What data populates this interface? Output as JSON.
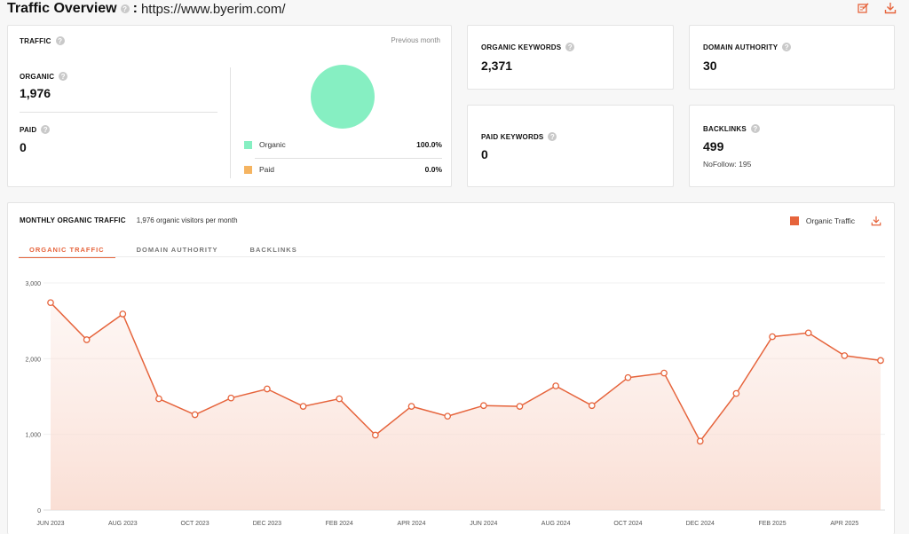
{
  "header": {
    "title": "Traffic Overview",
    "separator": ":",
    "url": "https://www.byerim.com/"
  },
  "traffic": {
    "label": "TRAFFIC",
    "period": "Previous month",
    "organic_label": "ORGANIC",
    "organic_value": "1,976",
    "paid_label": "PAID",
    "paid_value": "0",
    "legend": [
      {
        "name": "Organic",
        "pct": "100.0%",
        "color": "#86efc2"
      },
      {
        "name": "Paid",
        "pct": "0.0%",
        "color": "#f5b461"
      }
    ]
  },
  "organic_keywords": {
    "label": "ORGANIC KEYWORDS",
    "value": "2,371"
  },
  "paid_keywords": {
    "label": "PAID KEYWORDS",
    "value": "0"
  },
  "domain_authority": {
    "label": "DOMAIN AUTHORITY",
    "value": "30"
  },
  "backlinks": {
    "label": "BACKLINKS",
    "value": "499",
    "nofollow": "NoFollow: 195"
  },
  "monthly": {
    "title": "MONTHLY ORGANIC TRAFFIC",
    "subtitle": "1,976 organic visitors per month",
    "legend": "Organic Traffic",
    "tabs": [
      "ORGANIC TRAFFIC",
      "DOMAIN AUTHORITY",
      "BACKLINKS"
    ],
    "accent": "#e6643c"
  },
  "chart_data": {
    "type": "area",
    "x": [
      "JUN 2023",
      "JUL 2023",
      "AUG 2023",
      "SEP 2023",
      "OCT 2023",
      "NOV 2023",
      "DEC 2023",
      "JAN 2024",
      "FEB 2024",
      "MAR 2024",
      "APR 2024",
      "MAY 2024",
      "JUN 2024",
      "JUL 2024",
      "AUG 2024",
      "SEP 2024",
      "OCT 2024",
      "NOV 2024",
      "DEC 2024",
      "JAN 2025",
      "FEB 2025",
      "MAR 2025",
      "APR 2025",
      "MAY 2025"
    ],
    "xticks": [
      "JUN 2023",
      "AUG 2023",
      "OCT 2023",
      "DEC 2023",
      "FEB 2024",
      "APR 2024",
      "JUN 2024",
      "AUG 2024",
      "OCT 2024",
      "DEC 2024",
      "FEB 2025",
      "APR 2025"
    ],
    "series": [
      {
        "name": "Organic Traffic",
        "values": [
          2740,
          2250,
          2590,
          1470,
          1260,
          1480,
          1600,
          1370,
          1470,
          990,
          1370,
          1240,
          1380,
          1370,
          1640,
          1380,
          1750,
          1810,
          910,
          1540,
          2290,
          2340,
          2040,
          1976
        ]
      }
    ],
    "ylim": [
      0,
      3000
    ],
    "yticks": [
      "0",
      "1,000",
      "2,000",
      "3,000"
    ],
    "color": "#e6643c"
  }
}
